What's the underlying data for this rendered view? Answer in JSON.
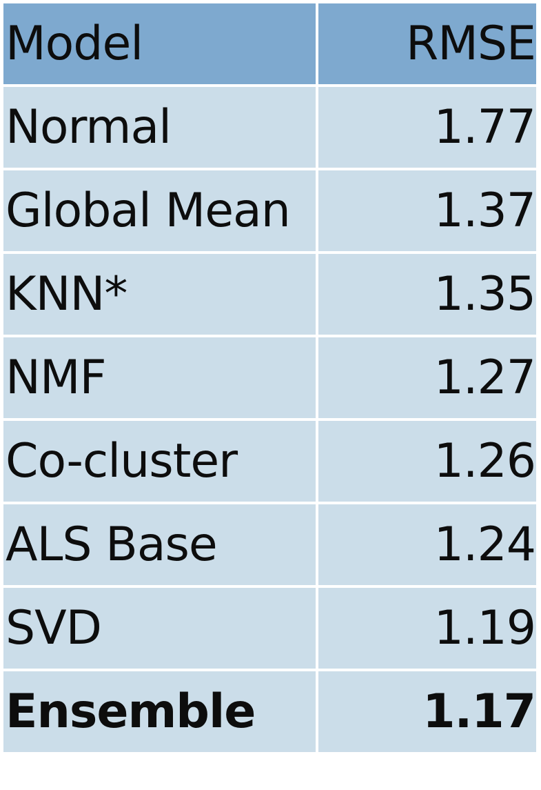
{
  "chart_data": {
    "type": "table",
    "columns": [
      "Model",
      "RMSE"
    ],
    "rows": [
      {
        "model": "Normal",
        "rmse": "1.77"
      },
      {
        "model": "Global Mean",
        "rmse": "1.37"
      },
      {
        "model": "KNN*",
        "rmse": "1.35"
      },
      {
        "model": "NMF",
        "rmse": "1.27"
      },
      {
        "model": "Co-cluster",
        "rmse": "1.26"
      },
      {
        "model": "ALS Base",
        "rmse": "1.24"
      },
      {
        "model": "SVD",
        "rmse": "1.19"
      },
      {
        "model": "Ensemble",
        "rmse": "1.17",
        "bold": true
      }
    ],
    "colors": {
      "header_fill": "#7ea9cf",
      "row_fill": "#cbdde9",
      "text": "#0d0d0d"
    }
  }
}
